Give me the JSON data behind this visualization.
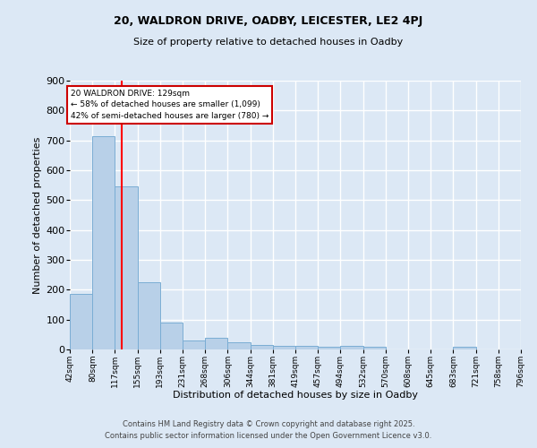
{
  "title1": "20, WALDRON DRIVE, OADBY, LEICESTER, LE2 4PJ",
  "title2": "Size of property relative to detached houses in Oadby",
  "xlabel": "Distribution of detached houses by size in Oadby",
  "ylabel": "Number of detached properties",
  "bar_color": "#b8d0e8",
  "bar_edge_color": "#7aadd4",
  "bg_color": "#dce8f5",
  "grid_color": "#ffffff",
  "red_line_x": 129,
  "annotation_title": "20 WALDRON DRIVE: 129sqm",
  "annotation_line1": "← 58% of detached houses are smaller (1,099)",
  "annotation_line2": "42% of semi-detached houses are larger (780) →",
  "annotation_box_color": "#cc0000",
  "bins": [
    42,
    80,
    117,
    155,
    193,
    231,
    268,
    306,
    344,
    381,
    419,
    457,
    494,
    532,
    570,
    608,
    645,
    683,
    721,
    758,
    796
  ],
  "bin_labels": [
    "42sqm",
    "80sqm",
    "117sqm",
    "155sqm",
    "193sqm",
    "231sqm",
    "268sqm",
    "306sqm",
    "344sqm",
    "381sqm",
    "419sqm",
    "457sqm",
    "494sqm",
    "532sqm",
    "570sqm",
    "608sqm",
    "645sqm",
    "683sqm",
    "721sqm",
    "758sqm",
    "796sqm"
  ],
  "values": [
    185,
    715,
    545,
    225,
    90,
    30,
    40,
    25,
    15,
    12,
    12,
    8,
    12,
    10,
    0,
    0,
    0,
    10,
    0,
    0
  ],
  "ylim": [
    0,
    900
  ],
  "yticks": [
    0,
    100,
    200,
    300,
    400,
    500,
    600,
    700,
    800,
    900
  ],
  "footer1": "Contains HM Land Registry data © Crown copyright and database right 2025.",
  "footer2": "Contains public sector information licensed under the Open Government Licence v3.0."
}
